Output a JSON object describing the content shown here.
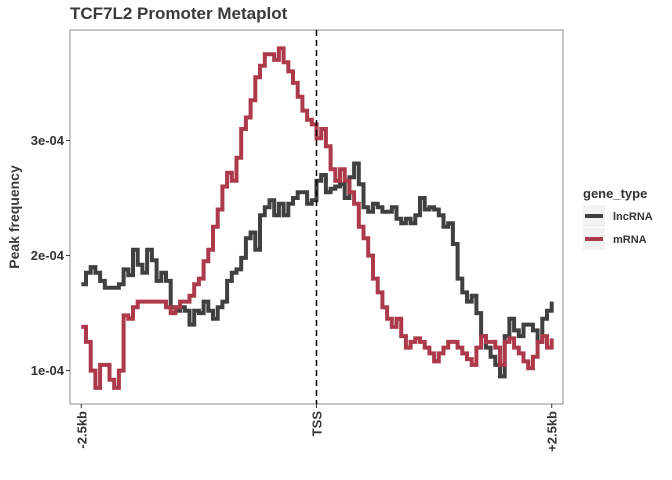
{
  "chart_data": {
    "type": "line",
    "title": "TCF7L2 Promoter Metaplot",
    "xlabel": "",
    "ylabel": "Peak frequency",
    "x_ticks": [
      {
        "x": -2500,
        "label": "-2.5kb"
      },
      {
        "x": 0,
        "label": "TSS"
      },
      {
        "x": 2500,
        "label": "+2.5kb"
      }
    ],
    "y_ticks": [
      {
        "y": 0.0001,
        "label": "1e-04"
      },
      {
        "y": 0.0002,
        "label": "2e-04"
      },
      {
        "y": 0.0003,
        "label": "3e-04"
      }
    ],
    "xlim": [
      -2620,
      2620
    ],
    "ylim": [
      7.1e-05,
      0.000396
    ],
    "vline": {
      "x": 0,
      "label": "TSS",
      "style": "dashed"
    },
    "grid": false,
    "legend": {
      "title": "gene_type",
      "position": "right"
    },
    "series": [
      {
        "name": "lncRNA",
        "color": "#404040",
        "x": [
          -2500,
          -2450,
          -2400,
          -2350,
          -2300,
          -2250,
          -2200,
          -2150,
          -2100,
          -2050,
          -2000,
          -1950,
          -1900,
          -1850,
          -1800,
          -1750,
          -1700,
          -1650,
          -1600,
          -1550,
          -1500,
          -1450,
          -1400,
          -1350,
          -1300,
          -1250,
          -1200,
          -1150,
          -1100,
          -1050,
          -1000,
          -950,
          -900,
          -850,
          -800,
          -750,
          -700,
          -650,
          -600,
          -550,
          -500,
          -450,
          -400,
          -350,
          -300,
          -250,
          -200,
          -150,
          -100,
          -50,
          0,
          50,
          100,
          150,
          200,
          250,
          300,
          350,
          400,
          450,
          500,
          550,
          600,
          650,
          700,
          750,
          800,
          850,
          900,
          950,
          1000,
          1050,
          1100,
          1150,
          1200,
          1250,
          1300,
          1350,
          1400,
          1450,
          1500,
          1550,
          1600,
          1650,
          1700,
          1750,
          1800,
          1850,
          1900,
          1950,
          2000,
          2050,
          2100,
          2150,
          2200,
          2250,
          2300,
          2350,
          2400,
          2450,
          2500
        ],
        "values": [
          0.000175,
          0.000185,
          0.00019,
          0.000185,
          0.000178,
          0.000172,
          0.000172,
          0.000172,
          0.000175,
          0.000188,
          0.000183,
          0.000205,
          0.000192,
          0.000185,
          0.000205,
          0.000196,
          0.000178,
          0.000185,
          0.000178,
          0.000155,
          0.000152,
          0.000155,
          0.000152,
          0.00014,
          0.000152,
          0.00015,
          0.00016,
          0.000152,
          0.000145,
          0.000155,
          0.00016,
          0.000178,
          0.000185,
          0.000188,
          0.000198,
          0.000215,
          0.00022,
          0.000205,
          0.000235,
          0.000242,
          0.000248,
          0.000235,
          0.000245,
          0.000235,
          0.000245,
          0.00025,
          0.000255,
          0.000255,
          0.000245,
          0.000248,
          0.000265,
          0.00027,
          0.000255,
          0.000258,
          0.00026,
          0.000262,
          0.00025,
          0.000268,
          0.00028,
          0.000262,
          0.000242,
          0.000238,
          0.000245,
          0.000242,
          0.000238,
          0.000238,
          0.000242,
          0.000232,
          0.000228,
          0.000232,
          0.000228,
          0.000235,
          0.00025,
          0.00024,
          0.000242,
          0.00024,
          0.000235,
          0.000225,
          0.000228,
          0.00021,
          0.00018,
          0.000168,
          0.00016,
          0.000165,
          0.00015,
          0.00013,
          0.00012,
          0.000112,
          0.000105,
          9.5e-05,
          0.00013,
          0.000145,
          0.000135,
          0.00013,
          0.00014,
          0.00014,
          0.000135,
          0.000125,
          0.000145,
          0.000152,
          0.00016
        ]
      },
      {
        "name": "mRNA",
        "color": "#ad3a4a",
        "x": [
          -2500,
          -2450,
          -2400,
          -2350,
          -2300,
          -2250,
          -2200,
          -2150,
          -2100,
          -2050,
          -2000,
          -1950,
          -1900,
          -1850,
          -1800,
          -1750,
          -1700,
          -1650,
          -1600,
          -1550,
          -1500,
          -1450,
          -1400,
          -1350,
          -1300,
          -1250,
          -1200,
          -1150,
          -1100,
          -1050,
          -1000,
          -950,
          -900,
          -850,
          -800,
          -750,
          -700,
          -650,
          -600,
          -550,
          -500,
          -450,
          -400,
          -350,
          -300,
          -250,
          -200,
          -150,
          -100,
          -50,
          0,
          50,
          100,
          150,
          200,
          250,
          300,
          350,
          400,
          450,
          500,
          550,
          600,
          650,
          700,
          750,
          800,
          850,
          900,
          950,
          1000,
          1050,
          1100,
          1150,
          1200,
          1250,
          1300,
          1350,
          1400,
          1450,
          1500,
          1550,
          1600,
          1650,
          1700,
          1750,
          1800,
          1850,
          1900,
          1950,
          2000,
          2050,
          2100,
          2150,
          2200,
          2250,
          2300,
          2350,
          2400,
          2450,
          2500
        ],
        "values": [
          0.000138,
          0.000125,
          0.0001,
          8.5e-05,
          0.000105,
          0.000105,
          9.2e-05,
          8.5e-05,
          0.0001,
          0.000148,
          0.000145,
          0.000155,
          0.00016,
          0.00016,
          0.00016,
          0.00016,
          0.00016,
          0.00016,
          0.000155,
          0.00015,
          0.000155,
          0.00016,
          0.00016,
          0.000165,
          0.000175,
          0.00018,
          0.000195,
          0.000205,
          0.000225,
          0.00024,
          0.00026,
          0.000272,
          0.000265,
          0.000285,
          0.00031,
          0.00032,
          0.000335,
          0.000355,
          0.000365,
          0.000375,
          0.000375,
          0.00037,
          0.00038,
          0.000368,
          0.00036,
          0.00035,
          0.000338,
          0.000326,
          0.000318,
          0.000314,
          0.000302,
          0.00031,
          0.000295,
          0.000275,
          0.000265,
          0.000275,
          0.000265,
          0.000255,
          0.000245,
          0.000225,
          0.000215,
          0.0002,
          0.00018,
          0.000168,
          0.000155,
          0.000145,
          0.000138,
          0.000145,
          0.00013,
          0.00012,
          0.000125,
          0.000128,
          0.000125,
          0.00012,
          0.000115,
          0.000108,
          0.000115,
          0.00012,
          0.000125,
          0.000125,
          0.00012,
          0.000115,
          0.00011,
          0.000105,
          0.00012,
          0.00013,
          0.000125,
          0.000125,
          0.00012,
          0.000105,
          0.000125,
          0.000128,
          0.00012,
          0.000115,
          0.000108,
          0.000102,
          0.000112,
          0.000125,
          0.00013,
          0.00012,
          0.000128
        ]
      }
    ]
  }
}
